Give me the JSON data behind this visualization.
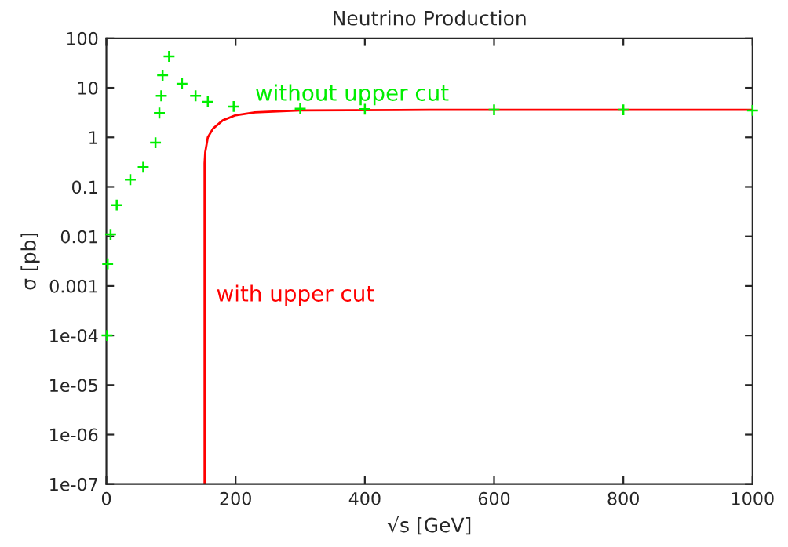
{
  "chart_data": {
    "type": "line",
    "title": "Neutrino Production",
    "xlabel": "√s [GeV]",
    "ylabel": "σ [pb]",
    "log": "y",
    "grid": false,
    "legend": false,
    "xlim": [
      0,
      1000
    ],
    "xticks": [
      0,
      200,
      400,
      600,
      800,
      1000
    ],
    "ylim": [
      1e-07,
      100
    ],
    "yticks": [
      {
        "value": 1e-07,
        "label": "1e-07"
      },
      {
        "value": 1e-06,
        "label": "1e-06"
      },
      {
        "value": 1e-05,
        "label": "1e-05"
      },
      {
        "value": 0.0001,
        "label": "1e-04"
      },
      {
        "value": 0.001,
        "label": "0.001"
      },
      {
        "value": 0.01,
        "label": "0.01"
      },
      {
        "value": 0.1,
        "label": "0.1"
      },
      {
        "value": 1,
        "label": "1"
      },
      {
        "value": 10,
        "label": "10"
      },
      {
        "value": 100,
        "label": "100"
      }
    ],
    "series": [
      {
        "name": "without upper cut",
        "type": "scatter",
        "marker": "cross",
        "color": "#00ee00",
        "x": [
          1,
          2,
          6.5,
          16,
          37,
          57,
          76,
          82,
          85,
          87,
          97,
          117,
          138,
          157,
          197,
          300,
          400,
          600,
          800,
          1000
        ],
        "values": [
          0.0001,
          0.0028,
          0.011,
          0.043,
          0.14,
          0.25,
          0.78,
          3.1,
          6.9,
          18,
          43,
          12,
          6.9,
          5.2,
          4.2,
          3.8,
          3.7,
          3.6,
          3.6,
          3.5
        ]
      },
      {
        "name": "with upper cut",
        "line_style": "solid",
        "color": "#ff0000",
        "x": [
          152,
          152,
          153,
          157,
          165,
          180,
          200,
          230,
          300,
          500,
          1000
        ],
        "values": [
          1e-07,
          0.3,
          0.5,
          1.0,
          1.5,
          2.2,
          2.8,
          3.2,
          3.5,
          3.6,
          3.6
        ]
      }
    ]
  }
}
